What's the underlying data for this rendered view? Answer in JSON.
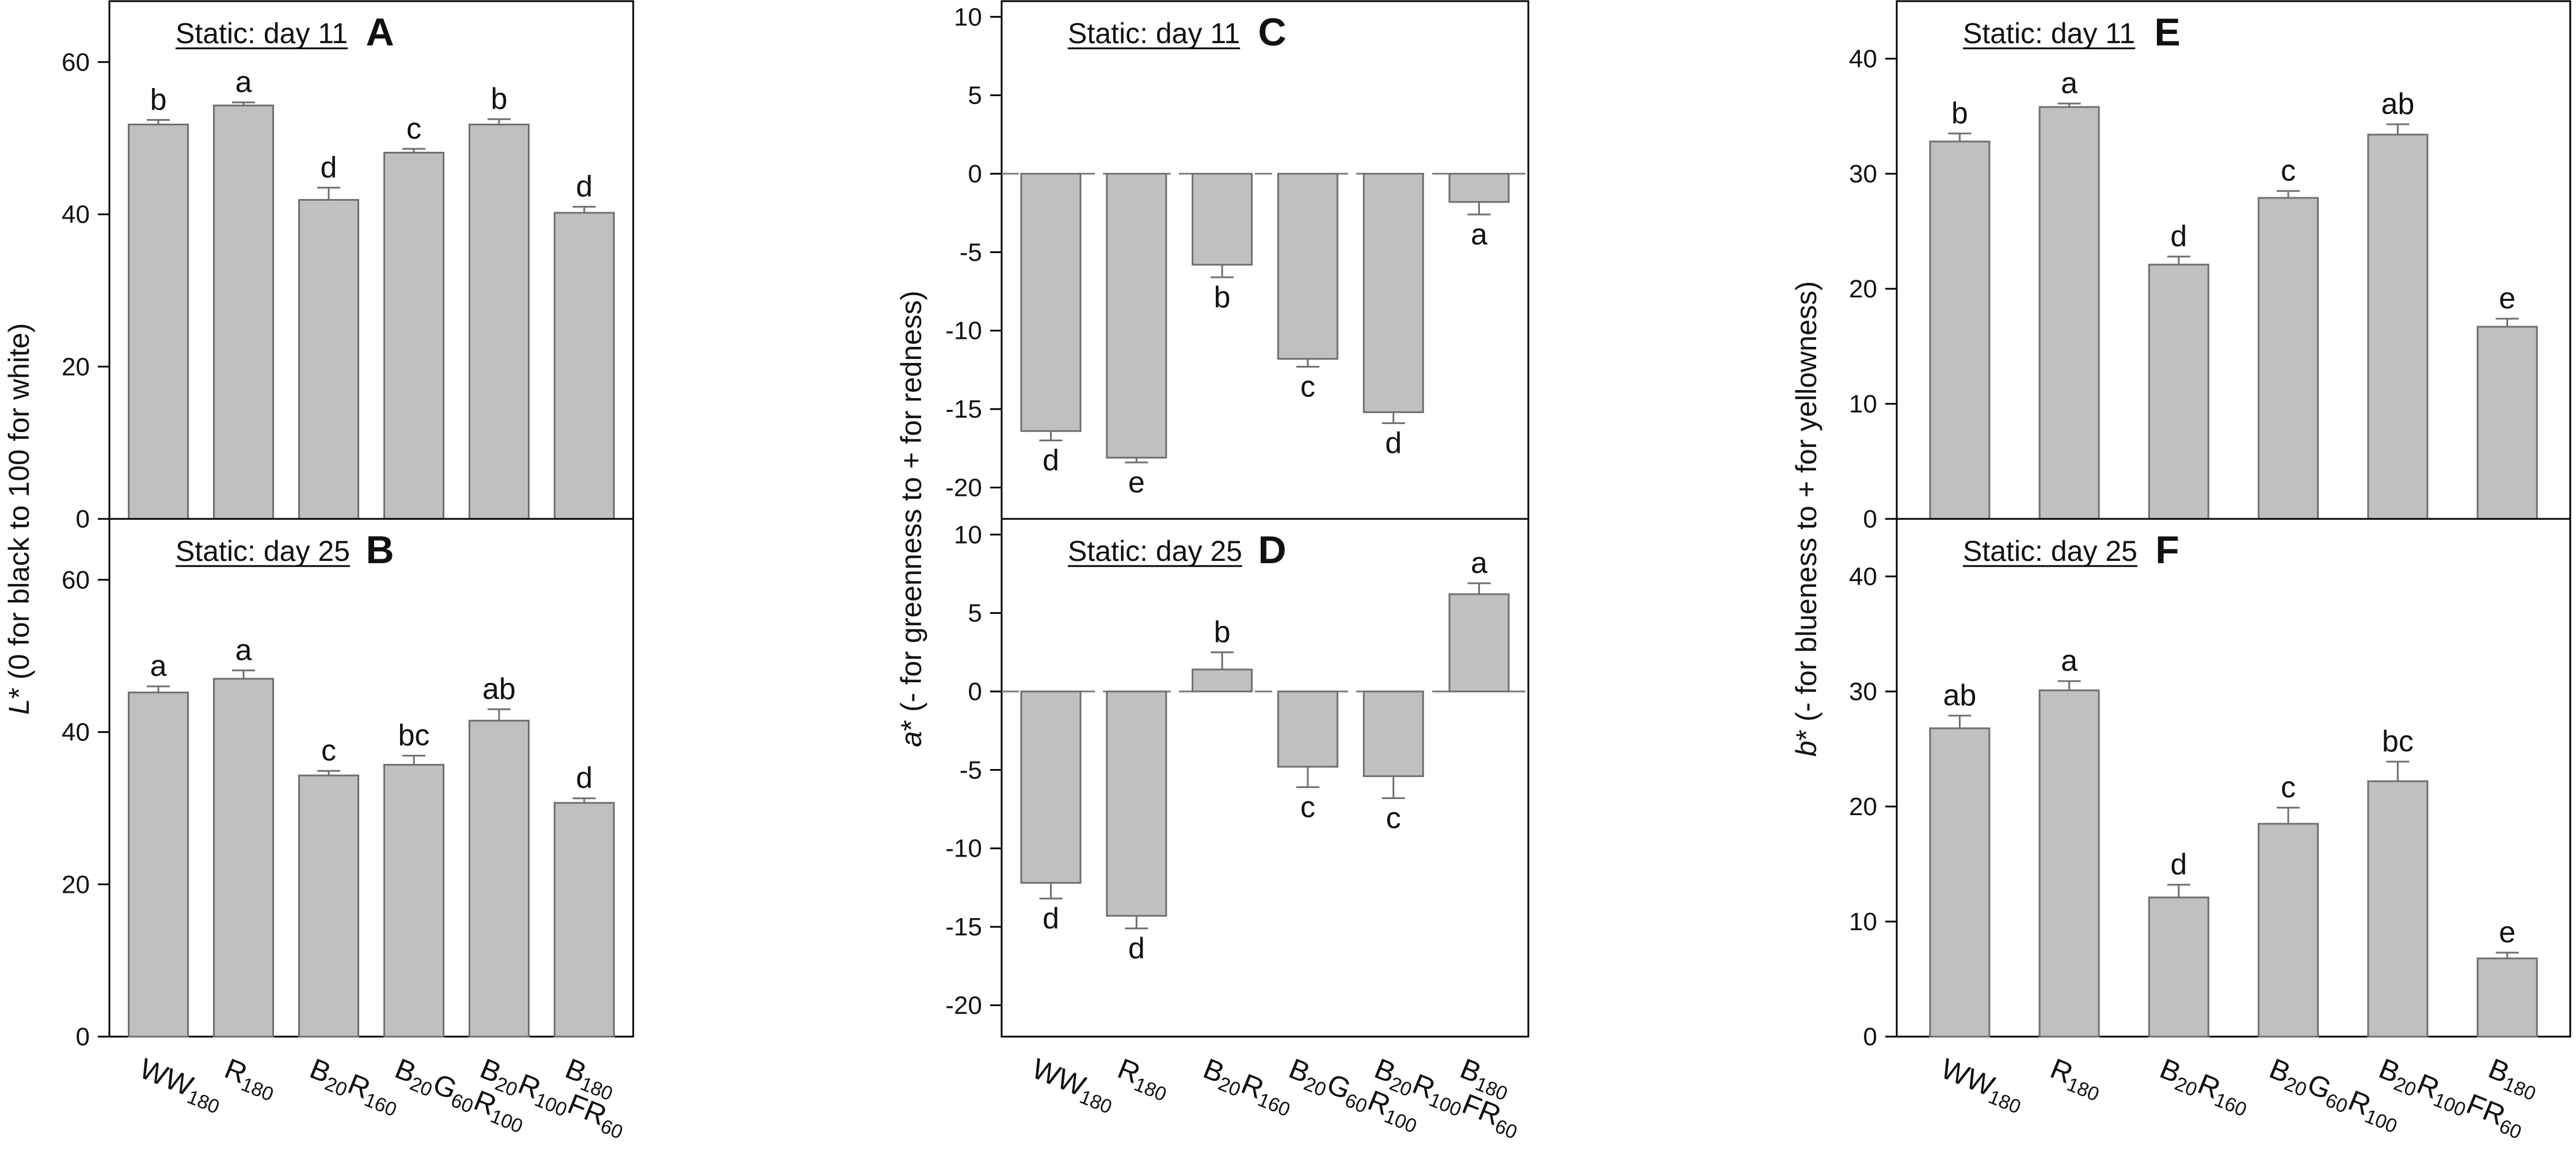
{
  "colors": {
    "bar": "#c0c0c0",
    "bar_edge": "#6e6e6e",
    "axis": "#000000",
    "zero_line": "#7a7a7a"
  },
  "categories": [
    {
      "id": "WW180",
      "parts": [
        [
          "WW",
          ""
        ],
        [
          "180",
          "sub"
        ]
      ]
    },
    {
      "id": "R180",
      "parts": [
        [
          "R",
          ""
        ],
        [
          "180",
          "sub"
        ]
      ]
    },
    {
      "id": "B20R160",
      "parts": [
        [
          "B",
          ""
        ],
        [
          "20",
          "sub"
        ],
        [
          "R",
          ""
        ],
        [
          "160",
          "sub"
        ]
      ]
    },
    {
      "id": "B20G60R100",
      "parts": [
        [
          "B",
          ""
        ],
        [
          "20",
          "sub"
        ],
        [
          "G",
          ""
        ],
        [
          "60",
          "sub"
        ],
        [
          "R",
          ""
        ],
        [
          "100",
          "sub"
        ]
      ]
    },
    {
      "id": "B20R100FR60",
      "parts": [
        [
          "B",
          ""
        ],
        [
          "20",
          "sub"
        ],
        [
          "R",
          ""
        ],
        [
          "100",
          "sub"
        ],
        [
          "FR",
          ""
        ],
        [
          "60",
          "sub"
        ]
      ]
    },
    {
      "id": "B180",
      "parts": [
        [
          "B",
          ""
        ],
        [
          "180",
          "sub"
        ]
      ]
    }
  ],
  "axis_labels": {
    "L": {
      "italic": "L",
      "rest": "* (0 for black to 100 for white)"
    },
    "a": {
      "italic": "a",
      "rest": "* (- for greenness to + for redness)"
    },
    "b": {
      "italic": "b",
      "rest": "* (- for blueness to + for yellowness)"
    }
  },
  "chart_data": [
    {
      "panel": "A",
      "type": "bar",
      "title": "Static: day 11",
      "ylim": [
        0,
        68
      ],
      "yticks": [
        0,
        20,
        40,
        60
      ],
      "zero_line": false,
      "values": [
        51.8,
        54.3,
        41.9,
        48.1,
        51.8,
        40.2
      ],
      "errors": [
        0.6,
        0.4,
        1.6,
        0.5,
        0.7,
        0.8
      ],
      "letters": [
        "b",
        "a",
        "d",
        "c",
        "b",
        "d"
      ]
    },
    {
      "panel": "B",
      "type": "bar",
      "title": "Static: day 25",
      "ylim": [
        0,
        68
      ],
      "yticks": [
        0,
        20,
        40,
        60
      ],
      "zero_line": false,
      "values": [
        45.2,
        47.0,
        34.3,
        35.7,
        41.5,
        30.7
      ],
      "errors": [
        0.8,
        1.1,
        0.6,
        1.2,
        1.5,
        0.6
      ],
      "letters": [
        "a",
        "a",
        "c",
        "bc",
        "ab",
        "d"
      ]
    },
    {
      "panel": "C",
      "type": "bar",
      "title": "Static: day 11",
      "ylim": [
        -22,
        11
      ],
      "yticks": [
        -20,
        -15,
        -10,
        -5,
        0,
        5,
        10
      ],
      "zero_line": true,
      "values": [
        -16.4,
        -18.1,
        -5.8,
        -11.8,
        -15.2,
        -1.8
      ],
      "errors": [
        0.6,
        0.3,
        0.8,
        0.5,
        0.7,
        0.8
      ],
      "letters": [
        "d",
        "e",
        "b",
        "c",
        "d",
        "a"
      ]
    },
    {
      "panel": "D",
      "type": "bar",
      "title": "Static: day 25",
      "ylim": [
        -22,
        11
      ],
      "yticks": [
        -20,
        -15,
        -10,
        -5,
        0,
        5,
        10
      ],
      "zero_line": true,
      "values": [
        -12.2,
        -14.3,
        1.4,
        -4.8,
        -5.4,
        6.2
      ],
      "errors": [
        1.0,
        0.8,
        1.1,
        1.3,
        1.4,
        0.7
      ],
      "letters": [
        "d",
        "d",
        "b",
        "c",
        "c",
        "a"
      ]
    },
    {
      "panel": "E",
      "type": "bar",
      "title": "Static: day 11",
      "ylim": [
        0,
        45
      ],
      "yticks": [
        0,
        10,
        20,
        30,
        40
      ],
      "zero_line": false,
      "values": [
        32.8,
        35.8,
        22.1,
        27.9,
        33.4,
        16.7
      ],
      "errors": [
        0.7,
        0.3,
        0.7,
        0.6,
        0.9,
        0.7
      ],
      "letters": [
        "b",
        "a",
        "d",
        "c",
        "ab",
        "e"
      ]
    },
    {
      "panel": "F",
      "type": "bar",
      "title": "Static: day 25",
      "ylim": [
        0,
        45
      ],
      "yticks": [
        0,
        10,
        20,
        30,
        40
      ],
      "zero_line": false,
      "values": [
        26.8,
        30.1,
        12.1,
        18.5,
        22.2,
        6.8
      ],
      "errors": [
        1.1,
        0.8,
        1.1,
        1.4,
        1.7,
        0.5
      ],
      "letters": [
        "ab",
        "a",
        "d",
        "c",
        "bc",
        "e"
      ]
    }
  ]
}
